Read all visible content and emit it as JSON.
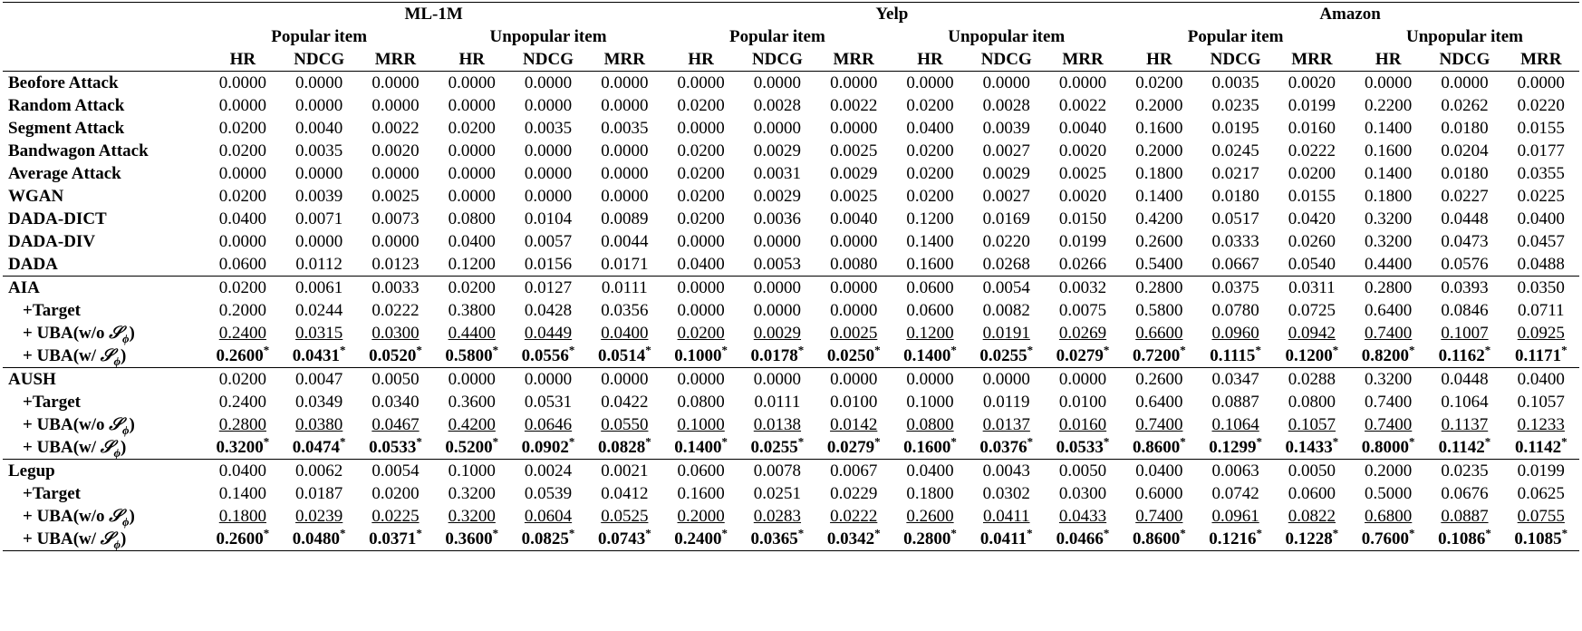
{
  "header": {
    "datasets": [
      "ML-1M",
      "Yelp",
      "Amazon"
    ],
    "item_groups": [
      "Popular item",
      "Unpopular item"
    ],
    "metrics": [
      "HR",
      "NDCG",
      "MRR"
    ]
  },
  "blocks": [
    {
      "rows": [
        {
          "name": "Beofore Attack",
          "sub": false,
          "style": "plain",
          "values": [
            "0.0000",
            "0.0000",
            "0.0000",
            "0.0000",
            "0.0000",
            "0.0000",
            "0.0000",
            "0.0000",
            "0.0000",
            "0.0000",
            "0.0000",
            "0.0000",
            "0.0200",
            "0.0035",
            "0.0020",
            "0.0000",
            "0.0000",
            "0.0000"
          ]
        },
        {
          "name": "Random Attack",
          "sub": false,
          "style": "plain",
          "values": [
            "0.0000",
            "0.0000",
            "0.0000",
            "0.0000",
            "0.0000",
            "0.0000",
            "0.0200",
            "0.0028",
            "0.0022",
            "0.0200",
            "0.0028",
            "0.0022",
            "0.2000",
            "0.0235",
            "0.0199",
            "0.2200",
            "0.0262",
            "0.0220"
          ]
        },
        {
          "name": "Segment Attack",
          "sub": false,
          "style": "plain",
          "values": [
            "0.0200",
            "0.0040",
            "0.0022",
            "0.0200",
            "0.0035",
            "0.0035",
            "0.0000",
            "0.0000",
            "0.0000",
            "0.0400",
            "0.0039",
            "0.0040",
            "0.1600",
            "0.0195",
            "0.0160",
            "0.1400",
            "0.0180",
            "0.0155"
          ]
        },
        {
          "name": "Bandwagon Attack",
          "sub": false,
          "style": "plain",
          "values": [
            "0.0200",
            "0.0035",
            "0.0020",
            "0.0000",
            "0.0000",
            "0.0000",
            "0.0200",
            "0.0029",
            "0.0025",
            "0.0200",
            "0.0027",
            "0.0020",
            "0.2000",
            "0.0245",
            "0.0222",
            "0.1600",
            "0.0204",
            "0.0177"
          ]
        },
        {
          "name": "Average Attack",
          "sub": false,
          "style": "plain",
          "values": [
            "0.0000",
            "0.0000",
            "0.0000",
            "0.0000",
            "0.0000",
            "0.0000",
            "0.0200",
            "0.0031",
            "0.0029",
            "0.0200",
            "0.0029",
            "0.0025",
            "0.1800",
            "0.0217",
            "0.0200",
            "0.1400",
            "0.0180",
            "0.0355"
          ]
        },
        {
          "name": "WGAN",
          "sub": false,
          "style": "plain",
          "values": [
            "0.0200",
            "0.0039",
            "0.0025",
            "0.0000",
            "0.0000",
            "0.0000",
            "0.0200",
            "0.0029",
            "0.0025",
            "0.0200",
            "0.0027",
            "0.0020",
            "0.1400",
            "0.0180",
            "0.0155",
            "0.1800",
            "0.0227",
            "0.0225"
          ]
        },
        {
          "name": "DADA-DICT",
          "sub": false,
          "style": "plain",
          "values": [
            "0.0400",
            "0.0071",
            "0.0073",
            "0.0800",
            "0.0104",
            "0.0089",
            "0.0200",
            "0.0036",
            "0.0040",
            "0.1200",
            "0.0169",
            "0.0150",
            "0.4200",
            "0.0517",
            "0.0420",
            "0.3200",
            "0.0448",
            "0.0400"
          ]
        },
        {
          "name": "DADA-DIV",
          "sub": false,
          "style": "plain",
          "values": [
            "0.0000",
            "0.0000",
            "0.0000",
            "0.0400",
            "0.0057",
            "0.0044",
            "0.0000",
            "0.0000",
            "0.0000",
            "0.1400",
            "0.0220",
            "0.0199",
            "0.2600",
            "0.0333",
            "0.0260",
            "0.3200",
            "0.0473",
            "0.0457"
          ]
        },
        {
          "name": "DADA",
          "sub": false,
          "style": "plain",
          "values": [
            "0.0600",
            "0.0112",
            "0.0123",
            "0.1200",
            "0.0156",
            "0.0171",
            "0.0400",
            "0.0053",
            "0.0080",
            "0.1600",
            "0.0268",
            "0.0266",
            "0.5400",
            "0.0667",
            "0.0540",
            "0.4400",
            "0.0576",
            "0.0488"
          ]
        }
      ]
    },
    {
      "rows": [
        {
          "name": "AIA",
          "sub": false,
          "style": "plain",
          "values": [
            "0.0200",
            "0.0061",
            "0.0033",
            "0.0200",
            "0.0127",
            "0.0111",
            "0.0000",
            "0.0000",
            "0.0000",
            "0.0600",
            "0.0054",
            "0.0032",
            "0.2800",
            "0.0375",
            "0.0311",
            "0.2800",
            "0.0393",
            "0.0350"
          ]
        },
        {
          "name": "+Target",
          "sub": true,
          "style": "plain",
          "values": [
            "0.2000",
            "0.0244",
            "0.0222",
            "0.3800",
            "0.0428",
            "0.0356",
            "0.0000",
            "0.0000",
            "0.0000",
            "0.0600",
            "0.0082",
            "0.0075",
            "0.5800",
            "0.0780",
            "0.0725",
            "0.6400",
            "0.0846",
            "0.0711"
          ]
        },
        {
          "name": "+ UBA(w/o ",
          "sym": "𝒮",
          "subscript": "ϕ",
          "close": ")",
          "sub": true,
          "style": "underline",
          "values": [
            "0.2400",
            "0.0315",
            "0.0300",
            "0.4400",
            "0.0449",
            "0.0400",
            "0.0200",
            "0.0029",
            "0.0025",
            "0.1200",
            "0.0191",
            "0.0269",
            "0.6600",
            "0.0960",
            "0.0942",
            "0.7400",
            "0.1007",
            "0.0925"
          ]
        },
        {
          "name": "+ UBA(w/ ",
          "sym": "𝒮",
          "subscript": "ϕ",
          "close": ")",
          "sub": true,
          "style": "bold",
          "values": [
            "0.2600",
            "0.0431",
            "0.0520",
            "0.5800",
            "0.0556",
            "0.0514",
            "0.1000",
            "0.0178",
            "0.0250",
            "0.1400",
            "0.0255",
            "0.0279",
            "0.7200",
            "0.1115",
            "0.1200",
            "0.8200",
            "0.1162",
            "0.1171"
          ]
        }
      ]
    },
    {
      "rows": [
        {
          "name": "AUSH",
          "sub": false,
          "style": "plain",
          "values": [
            "0.0200",
            "0.0047",
            "0.0050",
            "0.0000",
            "0.0000",
            "0.0000",
            "0.0000",
            "0.0000",
            "0.0000",
            "0.0000",
            "0.0000",
            "0.0000",
            "0.2600",
            "0.0347",
            "0.0288",
            "0.3200",
            "0.0448",
            "0.0400"
          ]
        },
        {
          "name": "+Target",
          "sub": true,
          "style": "plain",
          "values": [
            "0.2400",
            "0.0349",
            "0.0340",
            "0.3600",
            "0.0531",
            "0.0422",
            "0.0800",
            "0.0111",
            "0.0100",
            "0.1000",
            "0.0119",
            "0.0100",
            "0.6400",
            "0.0887",
            "0.0800",
            "0.7400",
            "0.1064",
            "0.1057"
          ]
        },
        {
          "name": "+ UBA(w/o ",
          "sym": "𝒮",
          "subscript": "ϕ",
          "close": ")",
          "sub": true,
          "style": "underline",
          "values": [
            "0.2800",
            "0.0380",
            "0.0467",
            "0.4200",
            "0.0646",
            "0.0550",
            "0.1000",
            "0.0138",
            "0.0142",
            "0.0800",
            "0.0137",
            "0.0160",
            "0.7400",
            "0.1064",
            "0.1057",
            "0.7400",
            "0.1137",
            "0.1233"
          ]
        },
        {
          "name": "+ UBA(w/ ",
          "sym": "𝒮",
          "subscript": "ϕ",
          "close": ")",
          "sub": true,
          "style": "bold",
          "values": [
            "0.3200",
            "0.0474",
            "0.0533",
            "0.5200",
            "0.0902",
            "0.0828",
            "0.1400",
            "0.0255",
            "0.0279",
            "0.1600",
            "0.0376",
            "0.0533",
            "0.8600",
            "0.1299",
            "0.1433",
            "0.8000",
            "0.1142",
            "0.1142"
          ]
        }
      ]
    },
    {
      "rows": [
        {
          "name": "Legup",
          "sub": false,
          "style": "plain",
          "values": [
            "0.0400",
            "0.0062",
            "0.0054",
            "0.1000",
            "0.0024",
            "0.0021",
            "0.0600",
            "0.0078",
            "0.0067",
            "0.0400",
            "0.0043",
            "0.0050",
            "0.0400",
            "0.0063",
            "0.0050",
            "0.2000",
            "0.0235",
            "0.0199"
          ]
        },
        {
          "name": "+Target",
          "sub": true,
          "style": "plain",
          "values": [
            "0.1400",
            "0.0187",
            "0.0200",
            "0.3200",
            "0.0539",
            "0.0412",
            "0.1600",
            "0.0251",
            "0.0229",
            "0.1800",
            "0.0302",
            "0.0300",
            "0.6000",
            "0.0742",
            "0.0600",
            "0.5000",
            "0.0676",
            "0.0625"
          ]
        },
        {
          "name": "+ UBA(w/o ",
          "sym": "𝒮",
          "subscript": "ϕ",
          "close": ")",
          "sub": true,
          "style": "underline",
          "values": [
            "0.1800",
            "0.0239",
            "0.0225",
            "0.3200",
            "0.0604",
            "0.0525",
            "0.2000",
            "0.0283",
            "0.0222",
            "0.2600",
            "0.0411",
            "0.0433",
            "0.7400",
            "0.0961",
            "0.0822",
            "0.6800",
            "0.0887",
            "0.0755"
          ]
        },
        {
          "name": "+ UBA(w/ ",
          "sym": "𝒮",
          "subscript": "ϕ",
          "close": ")",
          "sub": true,
          "style": "bold",
          "values": [
            "0.2600",
            "0.0480",
            "0.0371",
            "0.3600",
            "0.0825",
            "0.0743",
            "0.2400",
            "0.0365",
            "0.0342",
            "0.2800",
            "0.0411",
            "0.0466",
            "0.8600",
            "0.1216",
            "0.1228",
            "0.7600",
            "0.1086",
            "0.1085"
          ]
        }
      ]
    }
  ],
  "star_mark": "*"
}
